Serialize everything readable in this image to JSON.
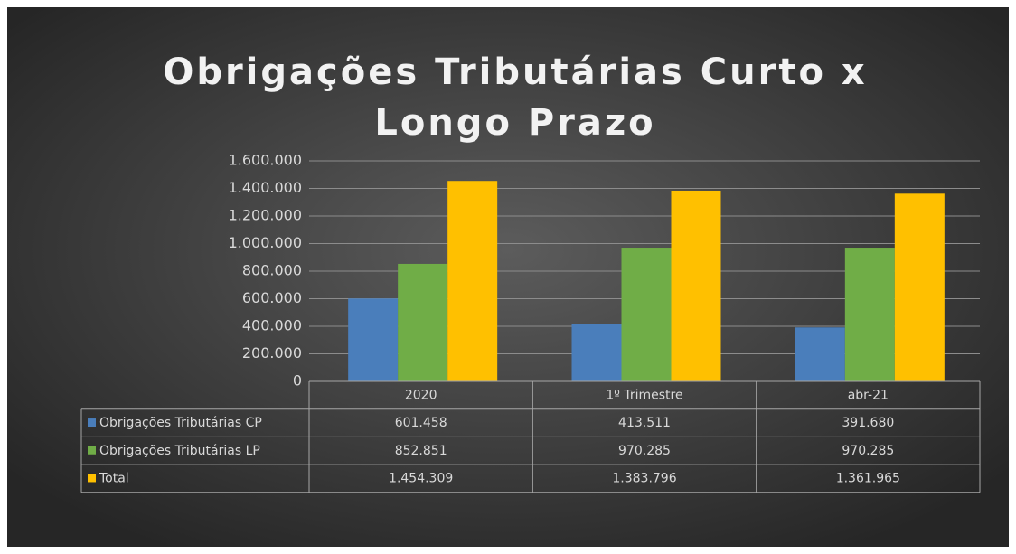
{
  "chart_data": {
    "type": "bar",
    "title": "Obrigações Tributárias Curto x Longo Prazo",
    "categories": [
      "2020",
      "1º Trimestre",
      "abr-21"
    ],
    "series": [
      {
        "name": "Obrigações Tributárias CP",
        "color": "#4a7ebb",
        "values": [
          601458,
          413511,
          391680
        ],
        "value_labels": [
          "601.458",
          "413.511",
          "391.680"
        ]
      },
      {
        "name": "Obrigações Tributárias LP",
        "color": "#70ad47",
        "values": [
          852851,
          970285,
          970285
        ],
        "value_labels": [
          "852.851",
          "970.285",
          "970.285"
        ]
      },
      {
        "name": "Total",
        "color": "#ffc000",
        "values": [
          1454309,
          1383796,
          1361965
        ],
        "value_labels": [
          "1.454.309",
          "1.383.796",
          "1.361.965"
        ]
      }
    ],
    "ylim": [
      0,
      1600000
    ],
    "yticks": [
      0,
      {
        "value": 200000,
        "label": "200.000"
      },
      {
        "value": 400000,
        "label": "400.000"
      },
      {
        "value": 600000,
        "label": "600.000"
      },
      {
        "value": 800000,
        "label": "800.000"
      },
      {
        "value": 1000000,
        "label": "1.000.000"
      },
      {
        "value": 1200000,
        "label": "1.200.000"
      },
      {
        "value": 1400000,
        "label": "1.400.000"
      },
      {
        "value": 1600000,
        "label": "1.600.000"
      }
    ],
    "grid": true
  }
}
